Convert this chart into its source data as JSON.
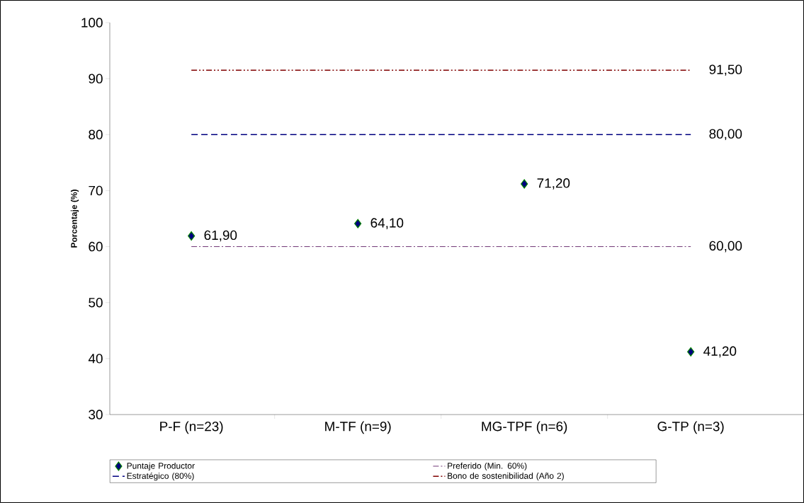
{
  "chart_data": {
    "type": "scatter",
    "ylabel": "Porcentaje (%)",
    "categories": [
      "P-F (n=23)",
      "M-TF (n=9)",
      "MG-TPF (n=6)",
      "G-TP (n=3)"
    ],
    "series": [
      {
        "name": "Puntaje Productor",
        "color": "#000080",
        "marker": "diamond",
        "values": [
          61.9,
          64.1,
          71.2,
          41.2
        ],
        "value_labels": [
          "61,90",
          "64,10",
          "71,20",
          "41,20"
        ]
      },
      {
        "name": "Preferido (Min. 60%)",
        "type": "line",
        "color": "#4b0050",
        "line_style": "dashdot",
        "marker": "none",
        "values": [
          60,
          60,
          60,
          60
        ],
        "value_labels": [
          null,
          null,
          null,
          "60,00"
        ]
      },
      {
        "name": "Estratégico (80%)",
        "type": "line",
        "color": "#000080",
        "line_style": "dashed",
        "marker": "none",
        "values": [
          80,
          80,
          80,
          80
        ],
        "value_labels": [
          null,
          null,
          null,
          "80,00"
        ]
      },
      {
        "name": "Bono de sostenibilidad (Año 2)",
        "type": "line",
        "color": "#800000",
        "line_style": "dashdotdot",
        "marker": "none",
        "values": [
          91.5,
          91.5,
          91.5,
          91.5
        ],
        "value_labels": [
          null,
          null,
          null,
          "91,50"
        ]
      }
    ],
    "ylim": [
      30,
      100
    ],
    "yticks": [
      30,
      40,
      50,
      60,
      70,
      80,
      90,
      100
    ],
    "grid": false,
    "legend": "bottom"
  }
}
